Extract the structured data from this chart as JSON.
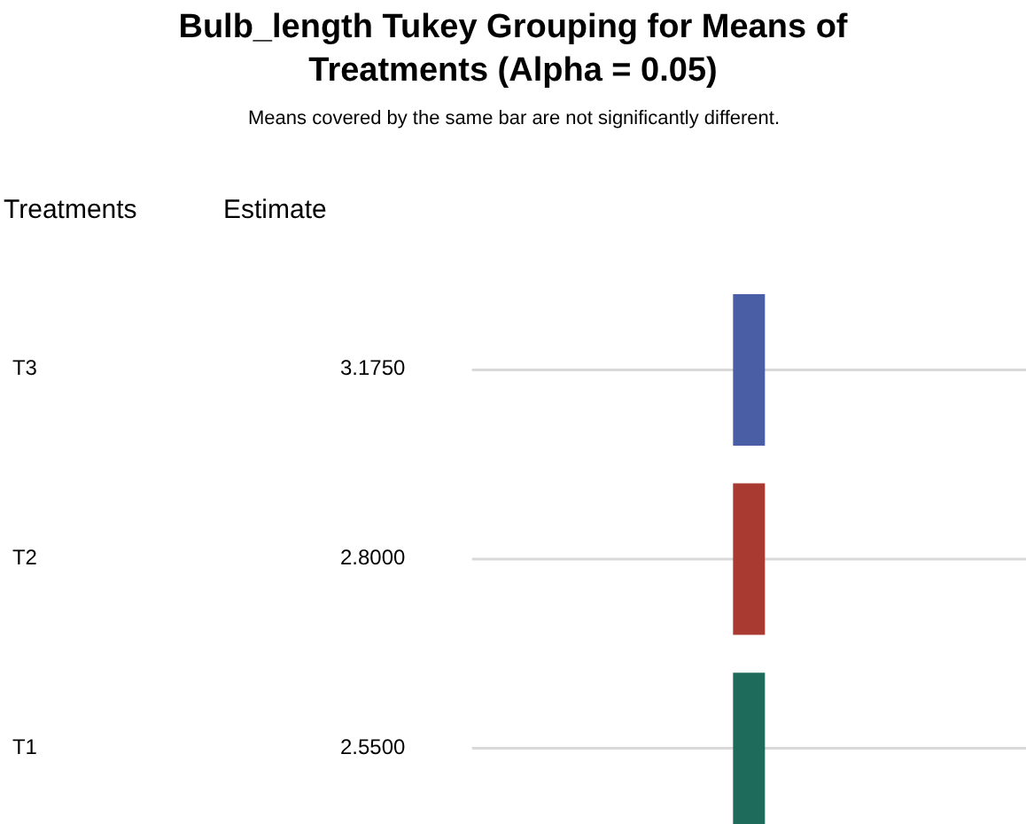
{
  "chart_data": {
    "type": "other",
    "title": "Bulb_length Tukey Grouping for Means of\nTreatments (Alpha = 0.05)",
    "subtitle": "Means covered by the same bar are not significantly different.",
    "annotations": [
      "Treatments",
      "Estimate"
    ],
    "categories": [
      "T3",
      "T2",
      "T1"
    ],
    "values": [
      3.175,
      2.8,
      2.55
    ],
    "value_labels": [
      "3.1750",
      "2.8000",
      "2.5500"
    ],
    "colors": [
      "#4a5ea6",
      "#a83a31",
      "#1e6b5c"
    ]
  }
}
